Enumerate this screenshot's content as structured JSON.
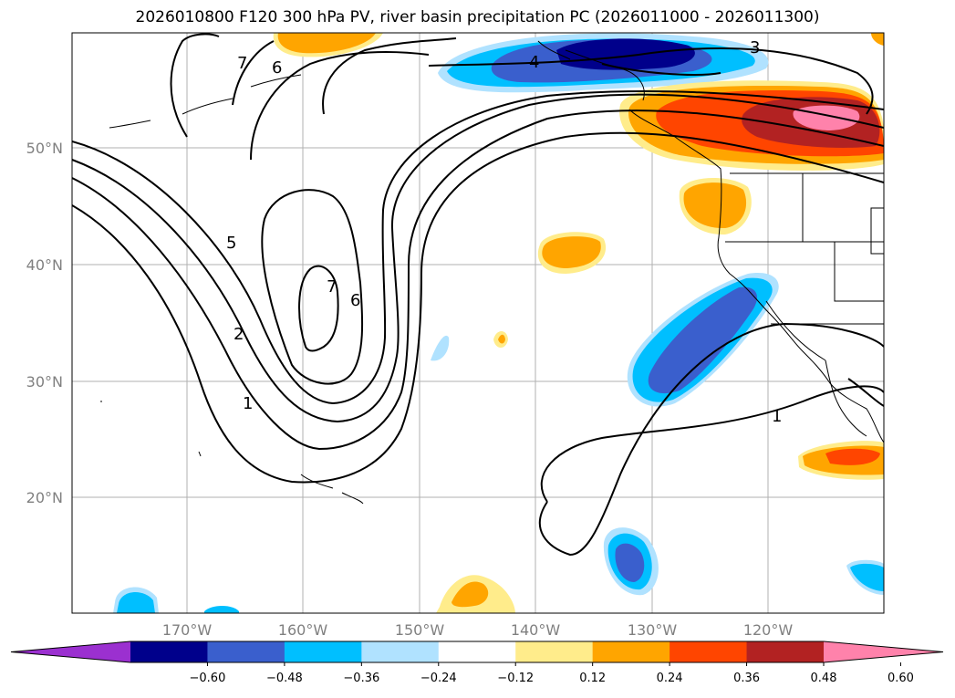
{
  "title": "2026010800 F120 300 hPa PV, river basin precipitation PC (2026011000 - 2026011300)",
  "map": {
    "lat_labels": [
      "50°N",
      "40°N",
      "30°N",
      "20°N"
    ],
    "lon_labels": [
      "170°W",
      "160°W",
      "150°W",
      "140°W",
      "130°W",
      "120°W"
    ],
    "pv_contour_labels": [
      "7",
      "6",
      "5",
      "2",
      "1",
      "3",
      "4",
      "7",
      "6",
      "1"
    ]
  },
  "colorbar": {
    "tick_labels": [
      "−0.60",
      "−0.48",
      "−0.36",
      "−0.24",
      "−0.12",
      "0.12",
      "0.24",
      "0.36",
      "0.48",
      "0.60"
    ],
    "colors": [
      "#9b30d0",
      "#00008b",
      "#3a5fcd",
      "#00bfff",
      "#b0e2ff",
      "#ffffff",
      "#ffec8b",
      "#ffa500",
      "#ff4500",
      "#b22222",
      "#ff82ab"
    ]
  }
}
